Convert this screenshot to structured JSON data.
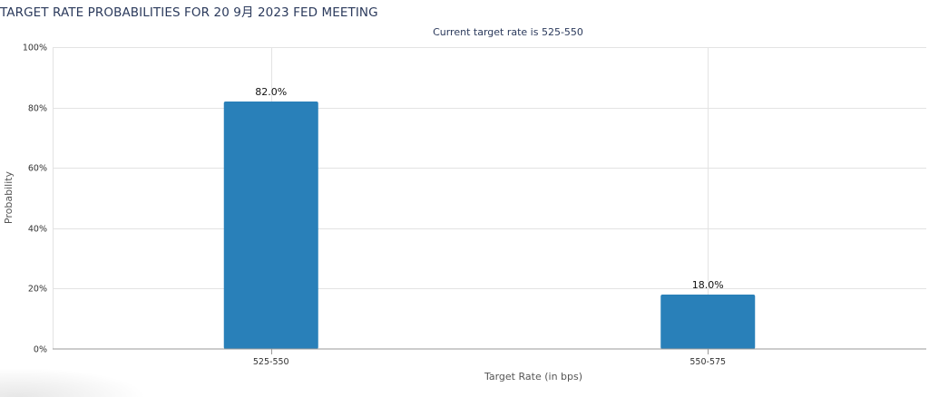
{
  "chart_data": {
    "type": "bar",
    "title": "TARGET RATE PROBABILITIES FOR 20 9月 2023 FED MEETING",
    "subtitle": "Current target rate is 525-550",
    "xlabel": "Target Rate (in bps)",
    "ylabel": "Probability",
    "categories": [
      "525-550",
      "550-575"
    ],
    "values": [
      82.0,
      18.0
    ],
    "value_labels": [
      "82.0%",
      "18.0%"
    ],
    "ylim": [
      0,
      100
    ],
    "yticks": [
      0,
      20,
      40,
      60,
      80,
      100
    ],
    "ytick_labels": [
      "0%",
      "20%",
      "40%",
      "60%",
      "80%",
      "100%"
    ],
    "grid": true,
    "legend": "none",
    "colors": {
      "bar": "#2980b9",
      "title": "#2b3a5c",
      "grid": "#e3e3e3"
    }
  }
}
